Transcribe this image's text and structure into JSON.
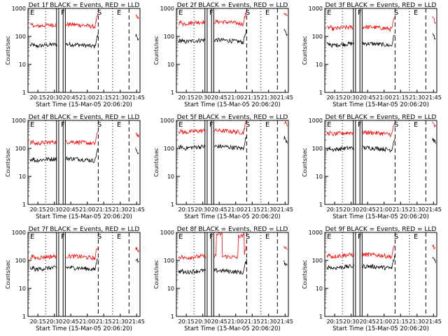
{
  "window_title": "",
  "chart_data": {
    "type": "line",
    "layout": "3x3 grid",
    "yscale": "log",
    "ylim": [
      1,
      1000
    ],
    "ylabel": "Counts/sec",
    "xlabel": "Start Time (15-Mar-05 20:06:20)",
    "xlim_minutes": [
      20.1,
      21.8
    ],
    "x_tick_labels": [
      "20:15",
      "20:30",
      "20:45",
      "21:00",
      "21:15",
      "21:30",
      "21:45"
    ],
    "y_tick_labels": [
      "1",
      "10",
      "100",
      "1000"
    ],
    "series_colors": {
      "events": "#000000",
      "lld": "#ff0000"
    },
    "markers": {
      "dotted_vertical_lines": [
        "20:22",
        "21:23"
      ],
      "dashed_vertical_lines": [
        "21:10",
        "21:38"
      ],
      "saa_lines": [
        "20:32",
        "20:34",
        "20:38",
        "20:40"
      ],
      "letters": [
        {
          "text": "E",
          "at": "20:08"
        },
        {
          "text": "F",
          "at": "20:36"
        },
        {
          "text": "S",
          "at": "21:09"
        },
        {
          "text": "E",
          "at": "21:27"
        }
      ]
    },
    "panels": [
      {
        "title": "Det 1f BLACK = Events, RED = LLD",
        "events_level": 42,
        "lld_level": 215,
        "lld_bumps": []
      },
      {
        "title": "Det 2f BLACK = Events, RED = LLD",
        "events_level": 60,
        "lld_level": 270,
        "lld_bumps": []
      },
      {
        "title": "Det 3f BLACK = Events, RED = LLD",
        "events_level": 45,
        "lld_level": 175,
        "lld_bumps": []
      },
      {
        "title": "Det 4f BLACK = Events, RED = LLD",
        "events_level": 35,
        "lld_level": 140,
        "lld_bumps": []
      },
      {
        "title": "Det 5f BLACK = Events, RED = LLD",
        "events_level": 95,
        "lld_level": 350,
        "lld_bumps": []
      },
      {
        "title": "Det 6f BLACK = Events, RED = LLD",
        "events_level": 85,
        "lld_level": 300,
        "lld_bumps": []
      },
      {
        "title": "Det 7f BLACK = Events, RED = LLD",
        "events_level": 45,
        "lld_level": 115,
        "lld_bumps": []
      },
      {
        "title": "Det 8f BLACK = Events, RED = LLD",
        "events_level": 35,
        "lld_level": 115,
        "lld_bumps": [
          "20:45",
          "21:05"
        ]
      },
      {
        "title": "Det 9f BLACK = Events, RED = LLD",
        "events_level": 50,
        "lld_level": 130,
        "lld_bumps": []
      }
    ]
  }
}
